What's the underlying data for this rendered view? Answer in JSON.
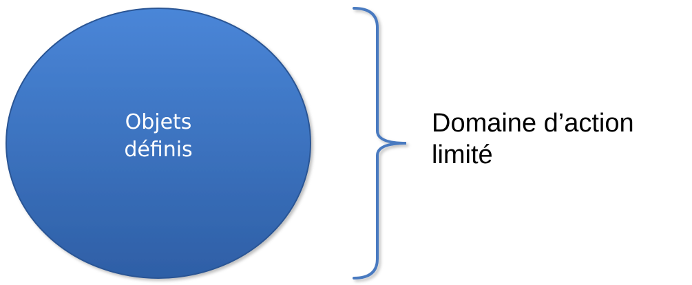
{
  "circle": {
    "line1": "Objets",
    "line2": "définis",
    "fill_top": "#4a86d8",
    "fill_bottom": "#2e5fa6",
    "stroke": "#2a5594"
  },
  "brace": {
    "color": "#4a7ac0"
  },
  "label": {
    "line1": "Domaine d’action",
    "line2": "limité"
  }
}
